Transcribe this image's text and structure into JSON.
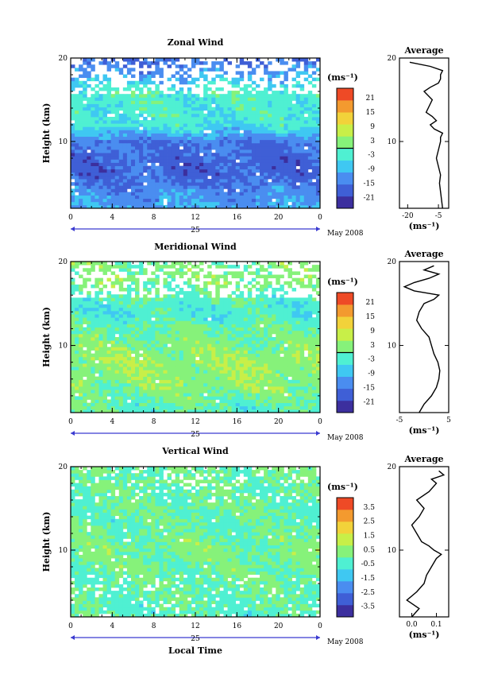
{
  "figure": {
    "xlabel": "Local Time",
    "date_label": "May 2008",
    "day_label": "25",
    "ylabel": "Height (km)",
    "unit": "(ms⁻¹)",
    "average_title": "Average"
  },
  "chart_data": [
    {
      "type": "heatmap",
      "title": "Zonal Wind",
      "xlabel": "Local Time",
      "ylabel": "Height (km)",
      "x_ticks": [
        "0",
        "4",
        "8",
        "12",
        "16",
        "20",
        "0"
      ],
      "xlim": [
        0,
        24
      ],
      "y_ticks": [
        "20",
        "10"
      ],
      "ylim": [
        2,
        20
      ],
      "colorbar_label": "(ms⁻¹)",
      "colorbar_ticks": [
        "21",
        "15",
        "9",
        "3",
        "-3",
        "-9",
        "-15",
        "-21"
      ],
      "colorbar_range": [
        -24,
        24
      ],
      "colors": [
        "#3c2f9e",
        "#3f5fd6",
        "#4a8df0",
        "#3fc8f2",
        "#4ff0d2",
        "#86f27a",
        "#c8ef48",
        "#f2d23a",
        "#f39a2f",
        "#ee4a26"
      ],
      "description_values": {
        "height_km": [
          2,
          4,
          6,
          8,
          10,
          11,
          12,
          14,
          16,
          18,
          20
        ],
        "typical_wind": [
          -10,
          -12,
          -16,
          -16,
          -14,
          -9,
          -4,
          -3,
          -2,
          -10,
          -16
        ]
      },
      "average": {
        "title": "Average",
        "x_ticks": [
          "-20",
          "-5"
        ],
        "xlabel": "(ms⁻¹)",
        "xlim": [
          -24,
          0
        ],
        "y_ticks": [
          "20",
          "10"
        ],
        "height_km": [
          2,
          3,
          4,
          5,
          6,
          7,
          8,
          9,
          10,
          10.5,
          11,
          11.5,
          12,
          12.5,
          13,
          13.5,
          14,
          15,
          16,
          16.5,
          17,
          17.5,
          18,
          18.5,
          19,
          19.5
        ],
        "values": [
          -3,
          -3.5,
          -4,
          -4.5,
          -4,
          -5,
          -6,
          -5,
          -4,
          -4,
          -3,
          -7,
          -9,
          -6,
          -8,
          -11,
          -10,
          -8,
          -12,
          -9,
          -5,
          -4,
          -4,
          -3,
          -9,
          -19
        ]
      }
    },
    {
      "type": "heatmap",
      "title": "Meridional Wind",
      "xlabel": "Local Time",
      "ylabel": "Height (km)",
      "x_ticks": [
        "0",
        "4",
        "8",
        "12",
        "16",
        "20",
        "0"
      ],
      "xlim": [
        0,
        24
      ],
      "y_ticks": [
        "20",
        "10"
      ],
      "ylim": [
        2,
        20
      ],
      "colorbar_label": "(ms⁻¹)",
      "colorbar_ticks": [
        "21",
        "15",
        "9",
        "3",
        "-3",
        "-9",
        "-15",
        "-21"
      ],
      "colorbar_range": [
        -24,
        24
      ],
      "colors": [
        "#3c2f9e",
        "#3f5fd6",
        "#4a8df0",
        "#3fc8f2",
        "#4ff0d2",
        "#86f27a",
        "#c8ef48",
        "#f2d23a",
        "#f39a2f",
        "#ee4a26"
      ],
      "description_values": {
        "height_km": [
          2,
          4,
          6,
          8,
          10,
          12,
          14,
          16,
          18,
          20
        ],
        "typical_wind": [
          -2,
          1,
          3,
          4,
          2,
          0,
          -3,
          -1,
          2,
          1
        ]
      },
      "average": {
        "title": "Average",
        "x_ticks": [
          "-5",
          "5"
        ],
        "xlabel": "(ms⁻¹)",
        "xlim": [
          -5,
          5
        ],
        "y_ticks": [
          "20",
          "10"
        ],
        "height_km": [
          2,
          3,
          4,
          5,
          6,
          7,
          8,
          9,
          10,
          11,
          12,
          13,
          14,
          15,
          15.5,
          16,
          16.5,
          17,
          17.5,
          18,
          18.5,
          19,
          19.5
        ],
        "values": [
          -1,
          0,
          1.5,
          2.5,
          3,
          3.2,
          2.8,
          2,
          1.5,
          1,
          -0.5,
          -1.5,
          -1,
          0,
          2,
          3,
          -2,
          -4,
          -2,
          1,
          3,
          0,
          2
        ]
      }
    },
    {
      "type": "heatmap",
      "title": "Vertical Wind",
      "xlabel": "Local Time",
      "ylabel": "Height (km)",
      "x_ticks": [
        "0",
        "4",
        "8",
        "12",
        "16",
        "20",
        "0"
      ],
      "xlim": [
        0,
        24
      ],
      "y_ticks": [
        "20",
        "10"
      ],
      "ylim": [
        2,
        20
      ],
      "colorbar_label": "(ms⁻¹)",
      "colorbar_ticks": [
        "3.5",
        "2.5",
        "1.5",
        "0.5",
        "-0.5",
        "-1.5",
        "-2.5",
        "-3.5"
      ],
      "colorbar_range": [
        -4,
        4
      ],
      "colors": [
        "#3c2f9e",
        "#3f5fd6",
        "#4a8df0",
        "#3fc8f2",
        "#4ff0d2",
        "#86f27a",
        "#c8ef48",
        "#f2d23a",
        "#f39a2f",
        "#ee4a26"
      ],
      "description_values": {
        "height_km": [
          2,
          6,
          10,
          14,
          18,
          20
        ],
        "typical_wind": [
          -0.2,
          0,
          0.2,
          -0.1,
          0,
          0.1
        ]
      },
      "average": {
        "title": "Average",
        "x_ticks": [
          "0.0",
          "0.1"
        ],
        "xlabel": "(ms⁻¹)",
        "xlim": [
          -0.05,
          0.15
        ],
        "y_ticks": [
          "20",
          "10"
        ],
        "height_km": [
          2,
          3,
          4,
          5,
          6,
          7,
          8,
          9,
          9.5,
          10,
          10.5,
          11,
          12,
          13,
          14,
          15,
          16,
          17,
          18,
          18.5,
          19,
          19.5
        ],
        "values": [
          0.0,
          0.03,
          -0.02,
          0.02,
          0.05,
          0.06,
          0.08,
          0.1,
          0.12,
          0.09,
          0.07,
          0.04,
          0.02,
          0.0,
          0.03,
          0.05,
          0.02,
          0.07,
          0.1,
          0.08,
          0.13,
          0.11
        ]
      }
    }
  ]
}
